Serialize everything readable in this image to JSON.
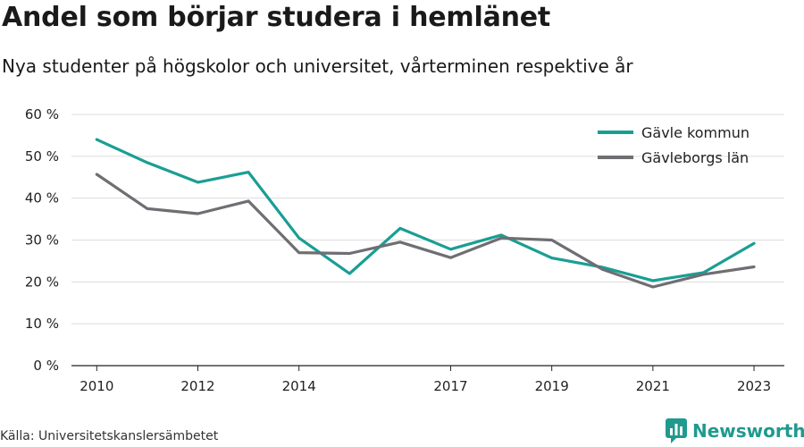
{
  "title": "Andel som börjar studera i hemlänet",
  "subtitle": "Nya studenter på högskolor och universitet, vårterminen respektive år",
  "source": "Källa: Universitetskanslersämbetet",
  "brand": {
    "name": "Newsworthy",
    "icon": "newsworthy-logo-icon",
    "color": "#1f9a8e"
  },
  "chart_data": {
    "type": "line",
    "x": [
      2010,
      2011,
      2012,
      2013,
      2014,
      2015,
      2016,
      2017,
      2018,
      2019,
      2020,
      2021,
      2022,
      2023
    ],
    "x_tick_labels": [
      "2010",
      "2012",
      "2014",
      "2017",
      "2019",
      "2021",
      "2023"
    ],
    "y_tick_labels": [
      "0 %",
      "10 %",
      "20 %",
      "30 %",
      "40 %",
      "50 %",
      "60 %"
    ],
    "y_ticks": [
      0,
      10,
      20,
      30,
      40,
      50,
      60
    ],
    "ylim": [
      0,
      60
    ],
    "xlim": [
      2009.5,
      2023.6
    ],
    "grid": true,
    "legend_position": "top-right",
    "series": [
      {
        "name": "Gävle kommun",
        "color": "#1a9e94",
        "values": [
          54,
          48.5,
          43.8,
          46.2,
          30.5,
          22,
          32.8,
          27.8,
          31.2,
          25.7,
          23.5,
          20.3,
          22.2,
          29.2
        ]
      },
      {
        "name": "Gävleborgs län",
        "color": "#6e6e73",
        "values": [
          45.7,
          37.5,
          36.3,
          39.3,
          27,
          26.8,
          29.5,
          25.8,
          30.5,
          30,
          23,
          18.8,
          21.8,
          23.6
        ]
      }
    ]
  }
}
